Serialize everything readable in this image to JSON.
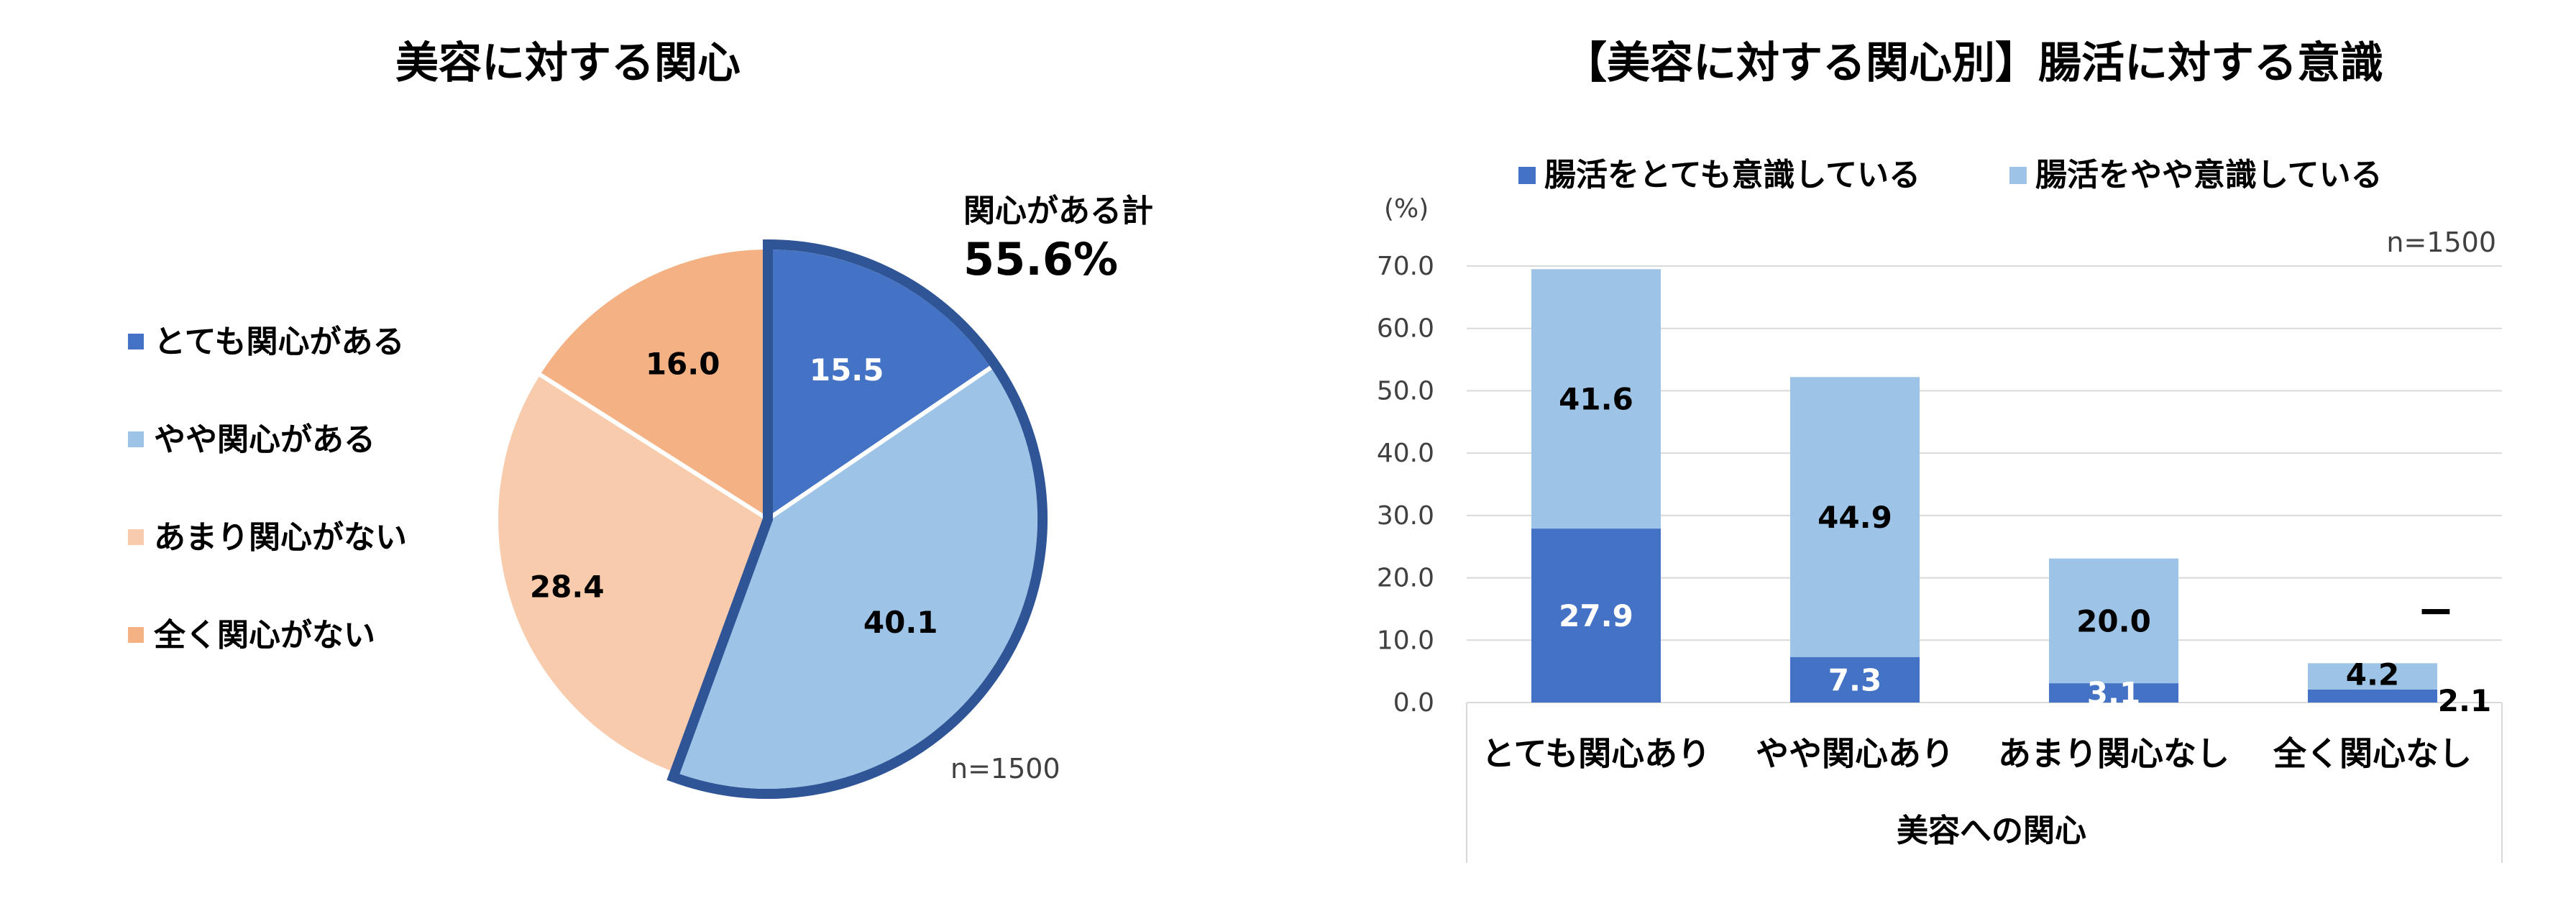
{
  "pie": {
    "title": "美容に対する関心",
    "n_label": "n=1500",
    "total_label": "関心がある計",
    "total_value": "55.6%",
    "legend": [
      "とても関心がある",
      "やや関心がある",
      "あまり関心がない",
      "全く関心がない"
    ],
    "colors": [
      "#4472C4",
      "#9DC3E6",
      "#F8CBAD",
      "#F4B183"
    ],
    "outline_color": "#2F5597"
  },
  "bar": {
    "title": "【美容に対する関心別】腸活に対する意識",
    "unit_label": "(%)",
    "n_label": "n=1500",
    "xlabel": "美容への関心",
    "legend": [
      "腸活をとても意識している",
      "腸活をやや意識している"
    ],
    "colors": [
      "#4472C4",
      "#9DC3E6"
    ],
    "ticks": [
      "0.0",
      "10.0",
      "20.0",
      "30.0",
      "40.0",
      "50.0",
      "60.0",
      "70.0"
    ],
    "dash_label": "−"
  },
  "chart_data": [
    {
      "type": "pie",
      "title": "美容に対する関心",
      "categories": [
        "とても関心がある",
        "やや関心がある",
        "あまり関心がない",
        "全く関心がない"
      ],
      "values": [
        15.5,
        40.1,
        28.4,
        16.0
      ],
      "annotations": [
        "関心がある計 55.6%",
        "n=1500"
      ],
      "legend_position": "left"
    },
    {
      "type": "bar",
      "stacked": true,
      "title": "【美容に対する関心別】腸活に対する意識",
      "categories": [
        "とても関心あり",
        "やや関心あり",
        "あまり関心なし",
        "全く関心なし"
      ],
      "series": [
        {
          "name": "腸活をとても意識している",
          "values": [
            27.9,
            7.3,
            3.1,
            2.1
          ]
        },
        {
          "name": "腸活をやや意識している",
          "values": [
            41.6,
            44.9,
            20.0,
            4.2
          ]
        }
      ],
      "xlabel": "美容への関心",
      "ylabel": "(%)",
      "ylim": [
        0,
        70
      ],
      "grid": true,
      "legend_position": "top",
      "annotations": [
        "n=1500",
        "−"
      ]
    }
  ]
}
